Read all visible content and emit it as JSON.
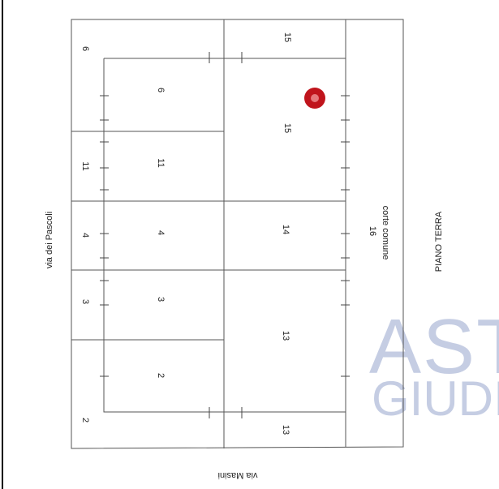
{
  "street_left": "via dei Pascoli",
  "street_bottom": "via Masini",
  "floor_label": "PIANO TERRA",
  "courtyard": {
    "number": "16",
    "name": "corte comune"
  },
  "units": [
    {
      "id": "outer-6",
      "label": "6"
    },
    {
      "id": "outer-11",
      "label": "11"
    },
    {
      "id": "outer-4",
      "label": "4"
    },
    {
      "id": "outer-3",
      "label": "3"
    },
    {
      "id": "outer-2",
      "label": "2"
    },
    {
      "id": "inner-6",
      "label": "6"
    },
    {
      "id": "inner-11",
      "label": "11"
    },
    {
      "id": "inner-4",
      "label": "4"
    },
    {
      "id": "inner-3",
      "label": "3"
    },
    {
      "id": "inner-2",
      "label": "2"
    },
    {
      "id": "right-15-top",
      "label": "15"
    },
    {
      "id": "right-15",
      "label": "15"
    },
    {
      "id": "right-14",
      "label": "14"
    },
    {
      "id": "right-13",
      "label": "13"
    },
    {
      "id": "right-13-bottom",
      "label": "13"
    }
  ],
  "marker": {
    "color": "#c0141c",
    "icon": "location-dot-icon"
  },
  "watermark": {
    "line1": "AST",
    "line2": "GIUDIZ",
    "color": "#c5cde3"
  }
}
